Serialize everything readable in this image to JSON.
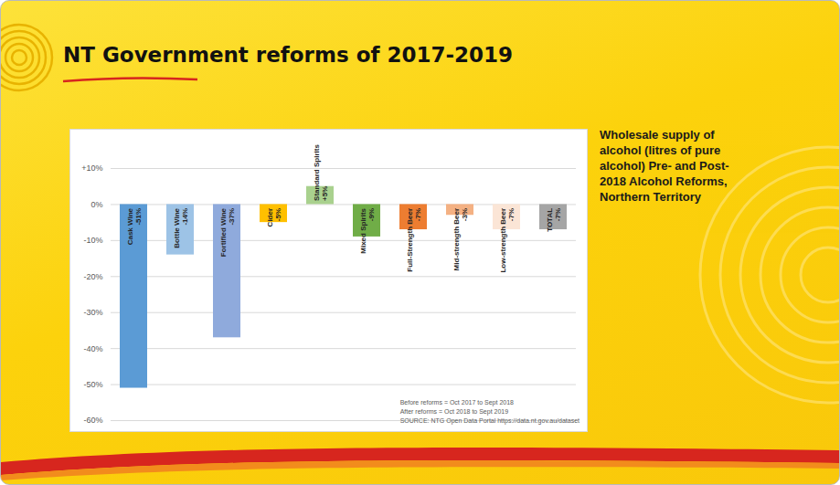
{
  "header": {
    "title": "NT Government reforms of 2017-2019"
  },
  "chart_data": {
    "type": "bar",
    "title": "Wholesale supply of alcohol (litres of pure alcohol) Pre- and Post- 2018 Alcohol Reforms, Northern Territory",
    "categories": [
      "Cask Wine",
      "Bottle Wine",
      "Fortified Wine",
      "Cider",
      "Standard Spirits",
      "Mixed Spirits",
      "Full-Strength Beer",
      "Mid-strength Beer",
      "Low-strength Beer",
      "TOTAL"
    ],
    "values": [
      -51,
      -14,
      -37,
      -5,
      5,
      -9,
      -7,
      -3,
      -7,
      -7
    ],
    "value_labels": [
      "-51%",
      "-14%",
      "-37%",
      "-5%",
      "+5%",
      "-9%",
      "-7%",
      "-3%",
      "-7%",
      "-7%"
    ],
    "colors": [
      "#5b9bd5",
      "#9dc3e6",
      "#8faadc",
      "#ffc000",
      "#a9d18e",
      "#70ad47",
      "#ed7d31",
      "#f4b183",
      "#fbe5d6",
      "#a5a5a5"
    ],
    "ylim": [
      -60,
      10
    ],
    "yticks": [
      {
        "value": 10,
        "label": "+10%"
      },
      {
        "value": 0,
        "label": "0%"
      },
      {
        "value": -10,
        "label": "-10%"
      },
      {
        "value": -20,
        "label": "-20%"
      },
      {
        "value": -30,
        "label": "-30%"
      },
      {
        "value": -40,
        "label": "-40%"
      },
      {
        "value": -50,
        "label": "-50%"
      },
      {
        "value": -60,
        "label": "-60%"
      }
    ],
    "grid": true,
    "data_labels": true,
    "tick_labels": "y",
    "annotations": [
      "Before reforms = Oct 2017 to Sept 2018",
      "After reforms = Oct 2018 to Sept 2019",
      "SOURCE: NTG Open Data Portal https://data.nt.gov.au/dataset"
    ]
  }
}
